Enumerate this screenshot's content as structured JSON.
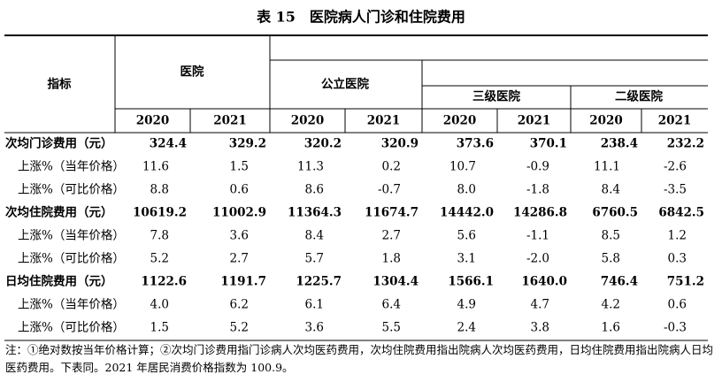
{
  "header": {
    "title": "表 15　医院病人门诊和住院费用"
  },
  "table": {
    "index_label": "指标",
    "groups": {
      "hospital": "医院",
      "public": "公立医院",
      "tier3": "三级医院",
      "tier2": "二级医院"
    },
    "years": [
      "2020",
      "2021",
      "2020",
      "2021",
      "2020",
      "2021",
      "2020",
      "2021"
    ],
    "rows": [
      {
        "label": "次均门诊费用（元）",
        "bold": true,
        "values": [
          "324.4",
          "329.2",
          "320.2",
          "320.9",
          "373.6",
          "370.1",
          "238.4",
          "232.2"
        ]
      },
      {
        "label": "上涨%（当年价格）",
        "values": [
          "11.6",
          "1.5",
          "11.3",
          "0.2",
          "10.7",
          "-0.9",
          "11.1",
          "-2.6"
        ]
      },
      {
        "label": "上涨%（可比价格）",
        "values": [
          "8.8",
          "0.6",
          "8.6",
          "-0.7",
          "8.0",
          "-1.8",
          "8.4",
          "-3.5"
        ]
      },
      {
        "label": "次均住院费用（元）",
        "bold": true,
        "values": [
          "10619.2",
          "11002.9",
          "11364.3",
          "11674.7",
          "14442.0",
          "14286.8",
          "6760.5",
          "6842.5"
        ]
      },
      {
        "label": "上涨%（当年价格）",
        "values": [
          "7.8",
          "3.6",
          "8.4",
          "2.7",
          "5.6",
          "-1.1",
          "8.5",
          "1.2"
        ]
      },
      {
        "label": "上涨%（可比价格）",
        "values": [
          "5.2",
          "2.7",
          "5.7",
          "1.8",
          "3.1",
          "-2.0",
          "5.8",
          "0.3"
        ]
      },
      {
        "label": "日均住院费用（元）",
        "bold": true,
        "values": [
          "1122.6",
          "1191.7",
          "1225.7",
          "1304.4",
          "1566.1",
          "1640.0",
          "746.4",
          "751.2"
        ]
      },
      {
        "label": "上涨%（当年价格）",
        "values": [
          "4.0",
          "6.2",
          "6.1",
          "6.4",
          "4.9",
          "4.7",
          "4.2",
          "0.6"
        ]
      },
      {
        "label": "上涨%（可比价格）",
        "values": [
          "1.5",
          "5.2",
          "3.6",
          "5.5",
          "2.4",
          "3.8",
          "1.6",
          "-0.3"
        ]
      }
    ]
  },
  "footnote": "注：①绝对数按当年价格计算；②次均门诊费用指门诊病人次均医药费用，次均住院费用指出院病人次均医药费用，日均住院费用指出院病人日均医药费用。下表同。2021 年居民消费价格指数为 100.9。"
}
